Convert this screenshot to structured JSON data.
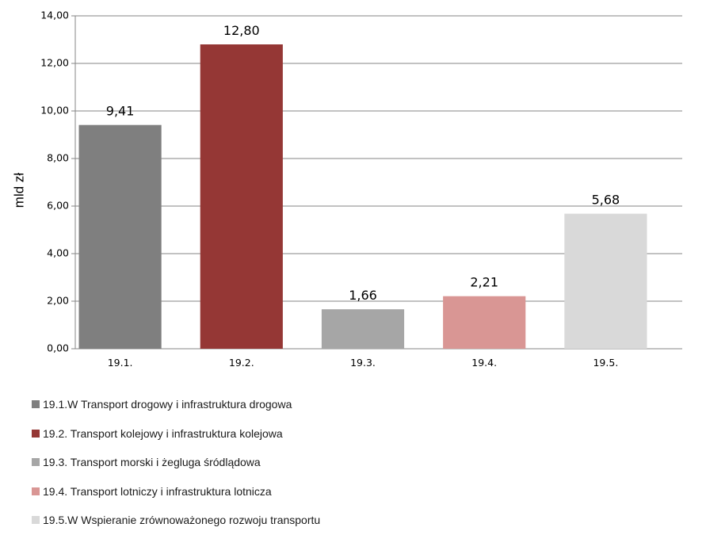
{
  "chart_data": {
    "type": "bar",
    "ylabel": "mld zł",
    "ylim": [
      0,
      14
    ],
    "ytick_step": 2,
    "y_ticks": [
      "0,00",
      "2,00",
      "4,00",
      "6,00",
      "8,00",
      "10,00",
      "12,00",
      "14,00"
    ],
    "categories": [
      "19.1.",
      "19.2.",
      "19.3.",
      "19.4.",
      "19.5."
    ],
    "values": [
      9.41,
      12.8,
      1.66,
      2.21,
      5.68
    ],
    "value_labels": [
      "9,41",
      "12,80",
      "1,66",
      "2,21",
      "5,68"
    ],
    "colors": [
      "#7f7f7f",
      "#953735",
      "#a6a6a6",
      "#d99694",
      "#d9d9d9"
    ],
    "grid": true,
    "legend_position": "bottom-left",
    "legend": [
      "19.1.W Transport drogowy i infrastruktura drogowa",
      "19.2. Transport kolejowy i infrastruktura kolejowa",
      "19.3. Transport morski i żegluga śródlądowa",
      "19.4. Transport lotniczy i infrastruktura lotnicza",
      "19.5.W Wspieranie zrównoważonego rozwoju transportu"
    ]
  }
}
